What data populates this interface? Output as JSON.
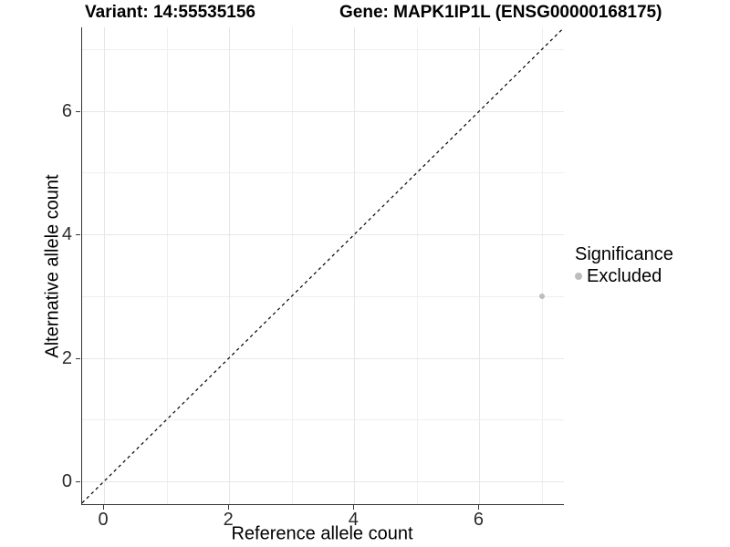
{
  "titles": {
    "variant": "Variant: 14:55535156",
    "gene": "Gene: MAPK1IP1L (ENSG00000168175)"
  },
  "axes": {
    "x": {
      "label": "Reference allele count",
      "ticks": [
        "0",
        "2",
        "4",
        "6"
      ]
    },
    "y": {
      "label": "Alternative allele count",
      "ticks": [
        "0",
        "2",
        "4",
        "6"
      ]
    }
  },
  "legend": {
    "title": "Significance",
    "items": [
      {
        "label": "Excluded",
        "color": "#bdbdbd"
      }
    ]
  },
  "colors": {
    "grid_major": "#e7e7e7",
    "grid_minor": "#efefef",
    "axis_line": "#333333",
    "reference_line": "#000000",
    "point": "#bdbdbd"
  },
  "chart_data": {
    "type": "scatter",
    "title": "Variant: 14:55535156 — Gene: MAPK1IP1L (ENSG00000168175)",
    "xlabel": "Reference allele count",
    "ylabel": "Alternative allele count",
    "xlim": [
      -0.35,
      7.35
    ],
    "ylim": [
      -0.35,
      7.35
    ],
    "x_ticks": [
      0,
      2,
      4,
      6
    ],
    "y_ticks": [
      0,
      2,
      4,
      6
    ],
    "x_minor_ticks": [
      1,
      3,
      5,
      7
    ],
    "y_minor_ticks": [
      1,
      3,
      5,
      7
    ],
    "grid": "major+minor",
    "legend_position": "right",
    "series": [
      {
        "name": "Excluded",
        "color": "#bdbdbd",
        "points": [
          {
            "x": 7,
            "y": 3
          }
        ]
      }
    ],
    "reference_line": {
      "kind": "identity y=x",
      "style": "dashed",
      "color": "#000000"
    }
  }
}
